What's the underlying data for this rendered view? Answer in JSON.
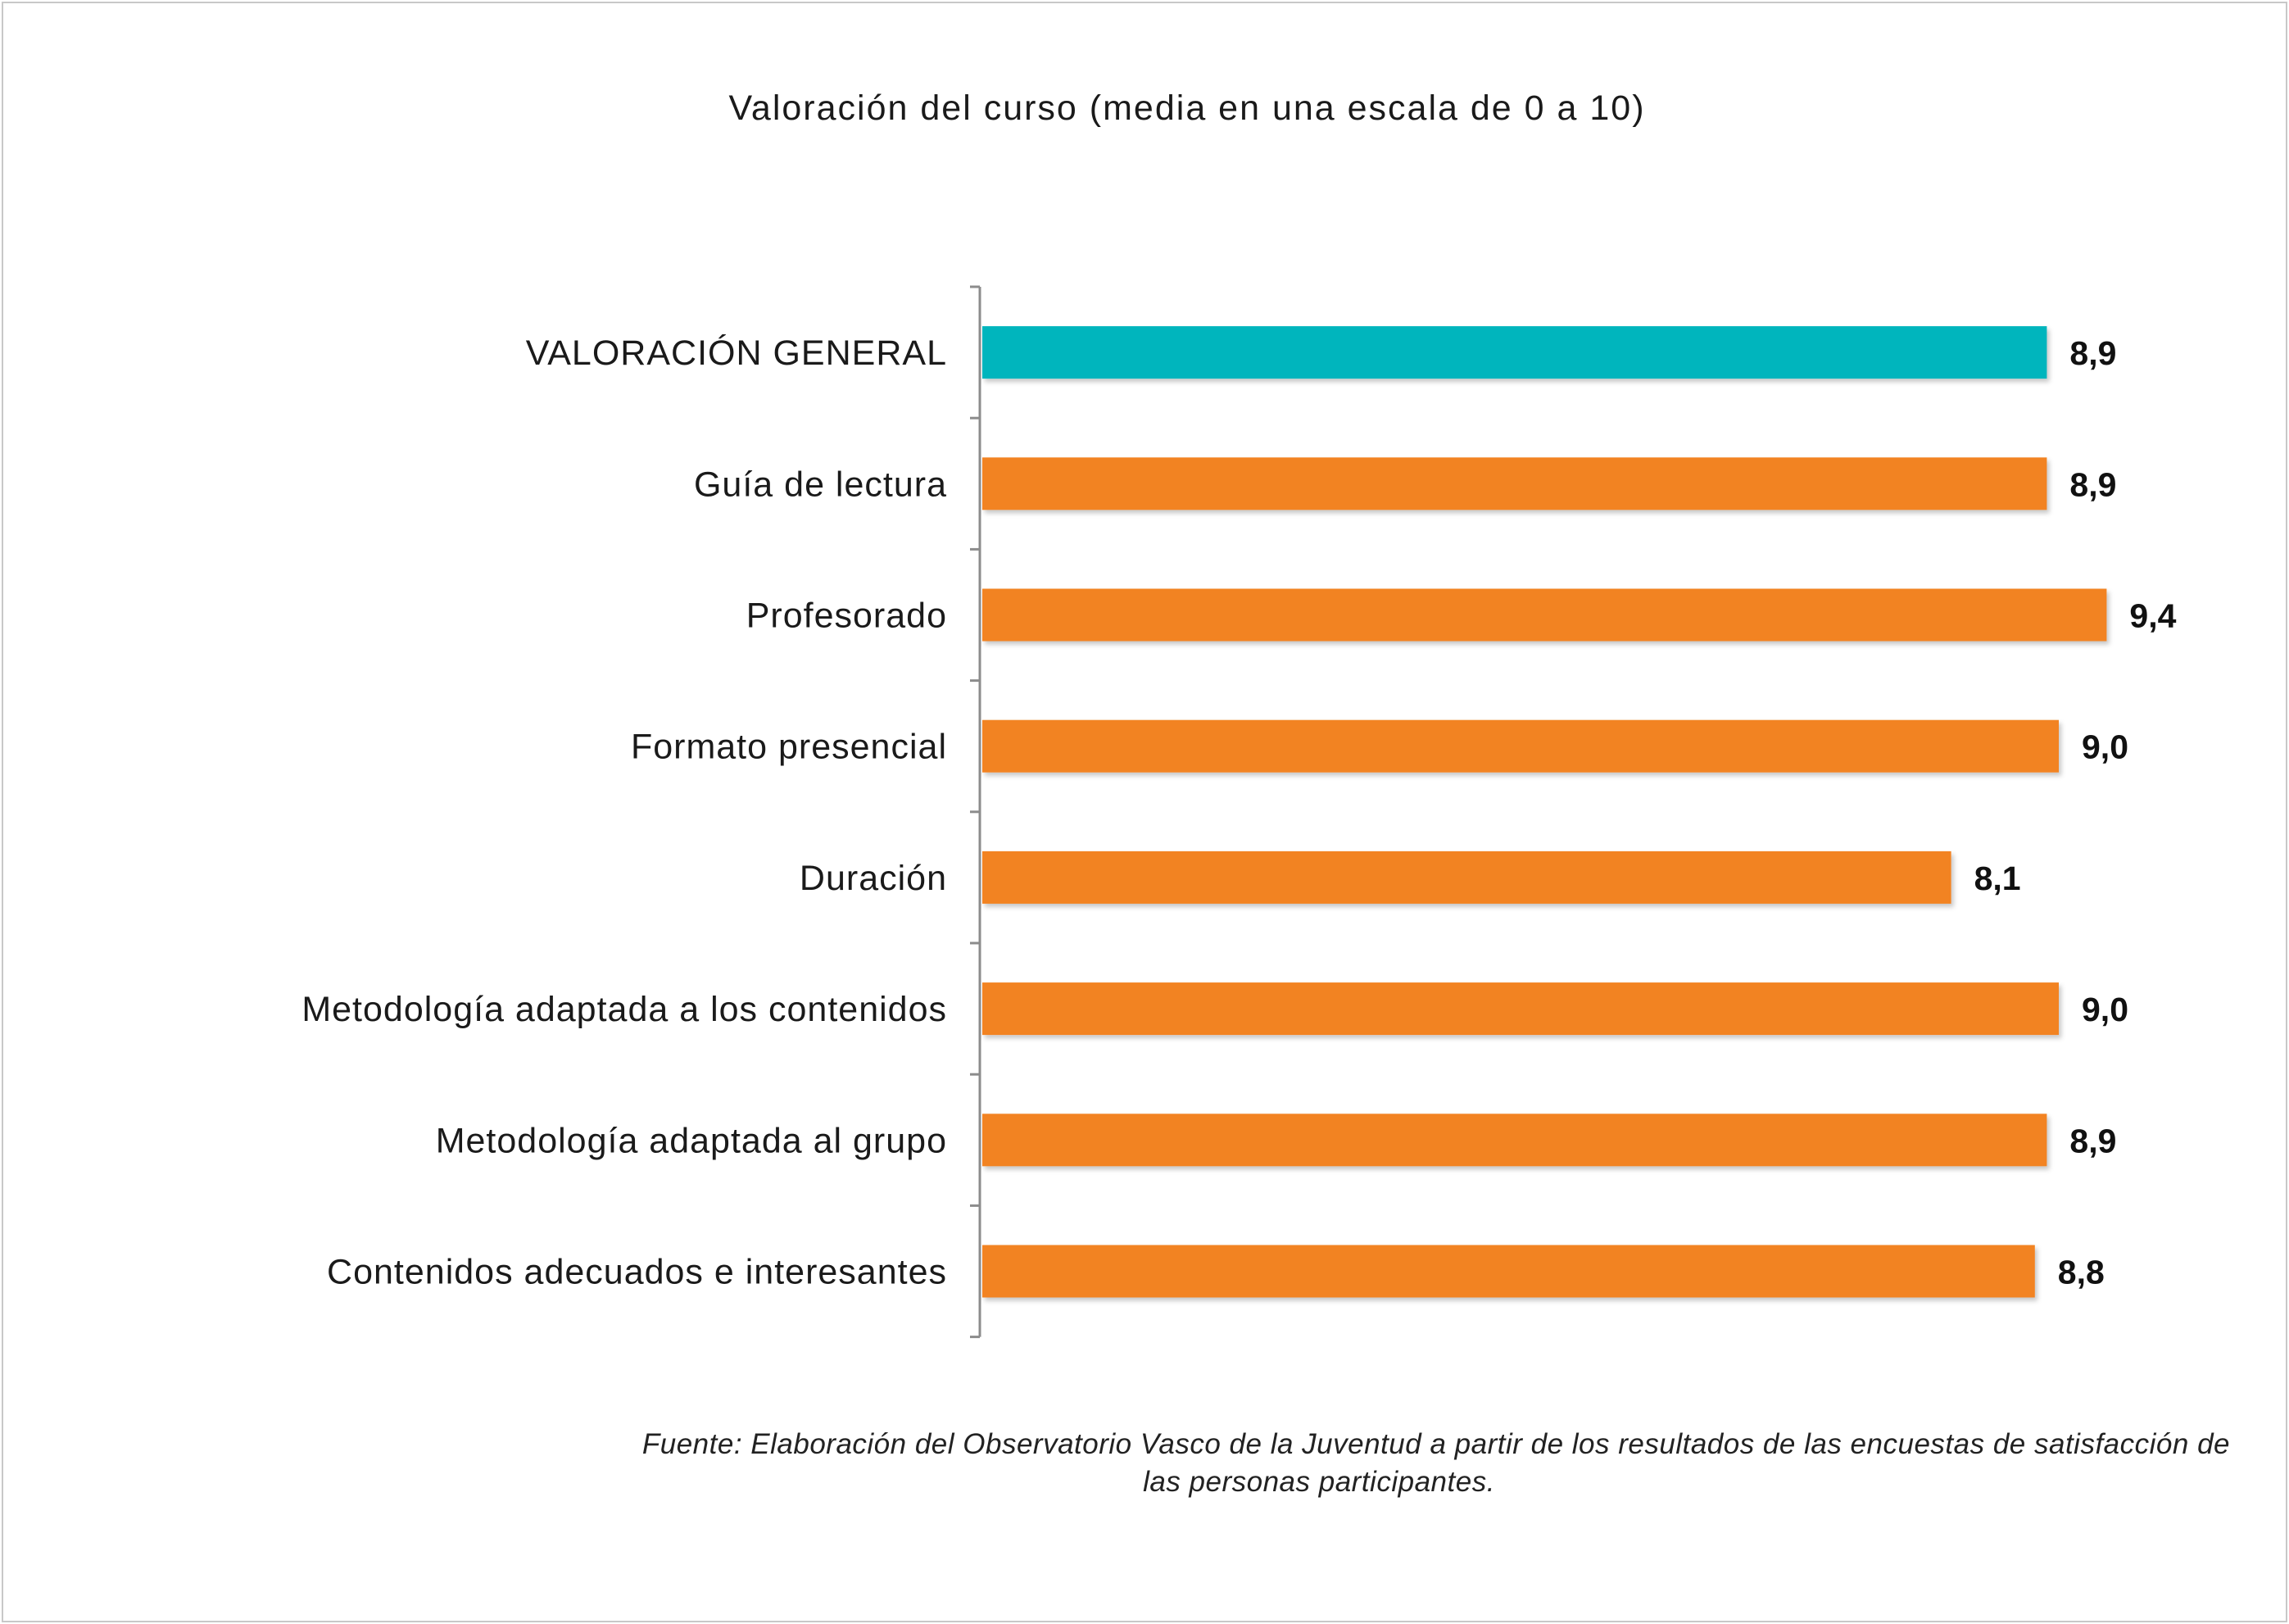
{
  "chart_data": {
    "type": "bar",
    "orientation": "horizontal",
    "title": "Valoración del curso (media en una escala de 0 a 10)",
    "categories": [
      "VALORACIÓN GENERAL",
      "Guía de lectura",
      "Profesorado",
      "Formato presencial",
      "Duración",
      "Metodología adaptada a los contenidos",
      "Metodología adaptada al grupo",
      "Contenidos adecuados e interesantes"
    ],
    "values": [
      8.9,
      8.9,
      9.4,
      9.0,
      8.1,
      9.0,
      8.9,
      8.8
    ],
    "value_labels": [
      "8,9",
      "8,9",
      "9,4",
      "9,0",
      "8,1",
      "9,0",
      "8,9",
      "8,8"
    ],
    "colors": [
      "#00b5bd",
      "#f28322",
      "#f28322",
      "#f28322",
      "#f28322",
      "#f28322",
      "#f28322",
      "#f28322"
    ],
    "xlim": [
      0,
      10
    ],
    "grid": false,
    "legend": "none",
    "source": [
      "Fuente: Elaboración del Observatorio Vasco de la Juventud a partir de los resultados de las encuestas de satisfacción de",
      "las personas participantes."
    ]
  }
}
